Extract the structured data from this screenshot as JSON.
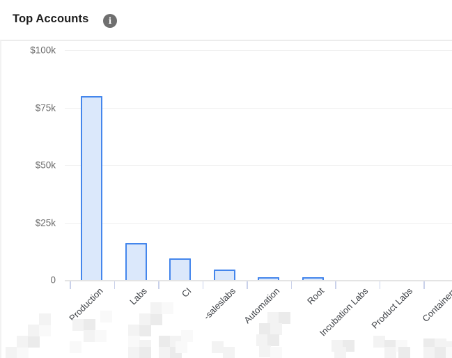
{
  "header": {
    "title": "Top Accounts",
    "info_glyph": "i"
  },
  "chart_data": {
    "type": "bar",
    "title": "Top Accounts",
    "categories": [
      "Production",
      "Labs",
      "CI",
      "-saleslabs",
      "Automation",
      "Root",
      "Incubation Labs",
      "Product Labs",
      "Containers"
    ],
    "values": [
      80000,
      16000,
      9500,
      4500,
      1100,
      1100,
      0,
      0,
      0
    ],
    "redacted_prefix": [
      true,
      true,
      true,
      true,
      true,
      true,
      false,
      true,
      true
    ],
    "y_ticks": [
      "$100k",
      "$75k",
      "$50k",
      "$25k",
      "0"
    ],
    "ylim": [
      0,
      100000
    ],
    "xlabel": "",
    "ylabel": "",
    "grid": "horizontal",
    "legend": "none"
  },
  "colors": {
    "bar_fill": "#dbe8fb",
    "bar_border": "#4486ec",
    "grid_line": "#f1f1f1",
    "axis_line": "#e4e4e4",
    "tick_mark": "#c9d1ea",
    "y_label_text": "#6b6b6b",
    "x_label_text": "#3f4247",
    "title_text": "#1c1c1c",
    "info_icon_bg": "#6f6f6f"
  }
}
